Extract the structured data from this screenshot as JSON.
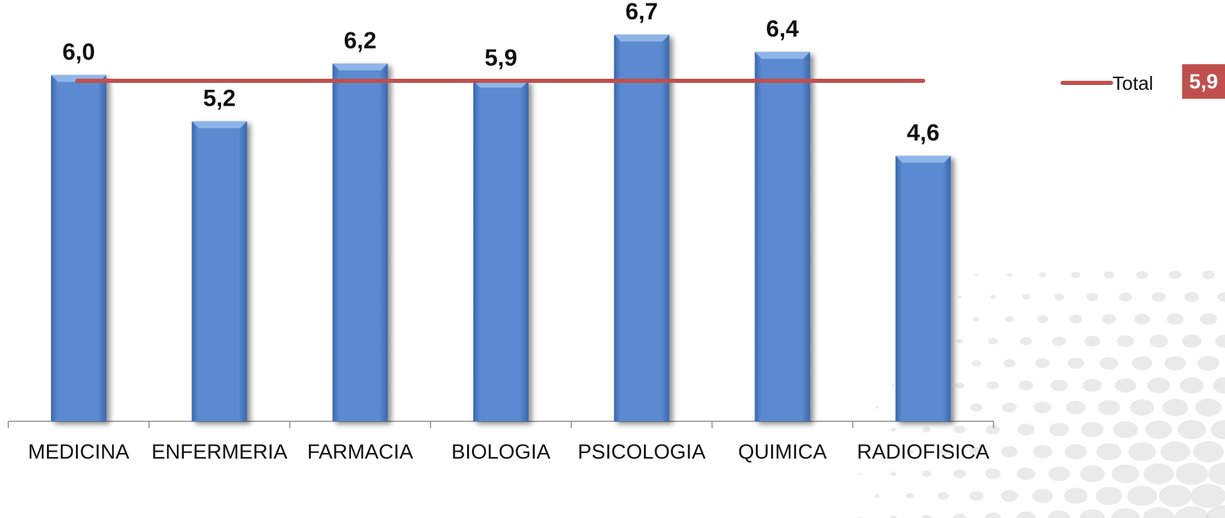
{
  "chart_data": {
    "type": "bar",
    "categories": [
      "MEDICINA",
      "ENFERMERIA",
      "FARMACIA",
      "BIOLOGIA",
      "PSICOLOGIA",
      "QUIMICA",
      "RADIOFISICA"
    ],
    "values": [
      6.0,
      5.2,
      6.2,
      5.9,
      6.7,
      6.4,
      4.6
    ],
    "value_labels": [
      "6,0",
      "5,2",
      "6,2",
      "5,9",
      "6,7",
      "6,4",
      "4,6"
    ],
    "ylim": [
      0,
      7.3
    ],
    "grid": false,
    "reference_line": {
      "name": "Total",
      "value": 5.9,
      "value_label": "5,9"
    },
    "legend_placement": "right",
    "title": "",
    "xlabel": "",
    "ylabel": ""
  },
  "colors": {
    "bar": "#5b8ad0",
    "bar_dark": "#3a67ad",
    "bar_light": "#8fb4e8",
    "total_line": "#c0504d",
    "axis": "#888888",
    "dots": "#d9d9d9"
  }
}
